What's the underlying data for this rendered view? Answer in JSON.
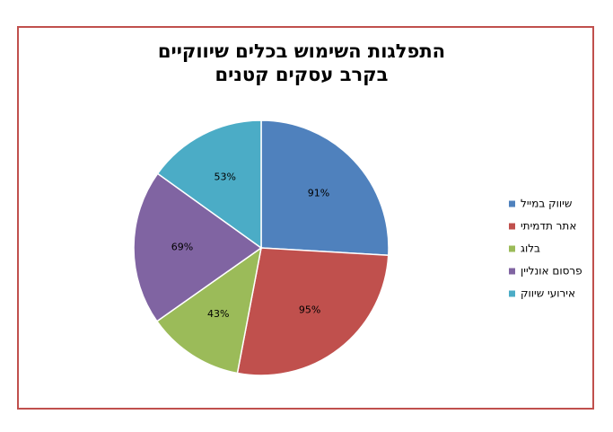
{
  "chart_data": {
    "type": "pie",
    "title": [
      "התפלגות השימוש בכלים שיווקיים",
      "בקרב עסקים קטנים"
    ],
    "categories": [
      "שיווק במייל",
      "אתר תדמיתי",
      "בלוג",
      "פרסום אונליין",
      "אירועי שיווק"
    ],
    "values": [
      91,
      95,
      43,
      69,
      53
    ],
    "value_labels": [
      "91%",
      "95%",
      "43%",
      "69%",
      "53%"
    ],
    "colors": [
      "#4f81bd",
      "#c0504d",
      "#9bbb59",
      "#8064a2",
      "#4bacc6"
    ]
  }
}
